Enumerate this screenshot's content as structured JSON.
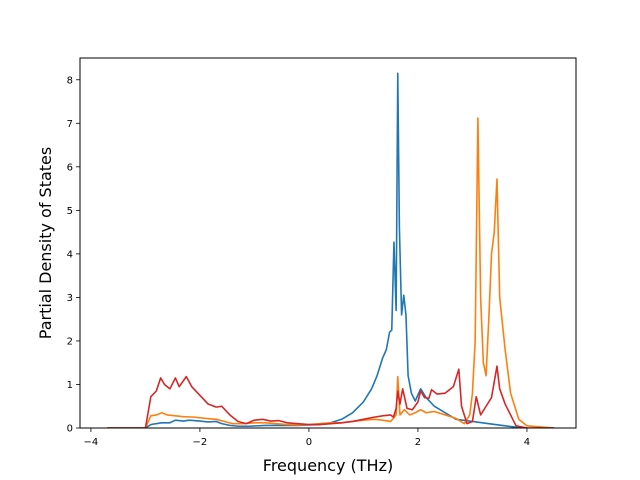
{
  "chart_data": {
    "type": "line",
    "title": "",
    "xlabel": "Frequency (THz)",
    "ylabel": "Partial Density of States",
    "xlim": [
      -4.2,
      4.9
    ],
    "ylim": [
      0,
      8.5
    ],
    "xticks": [
      -4,
      -2,
      0,
      2,
      4
    ],
    "yticks": [
      0,
      1,
      2,
      3,
      4,
      5,
      6,
      7,
      8
    ],
    "grid": false,
    "legend": "none",
    "series": [
      {
        "color": "#1f77b4",
        "points": [
          [
            -3.7,
            0
          ],
          [
            -3.0,
            0
          ],
          [
            -2.9,
            0.08
          ],
          [
            -2.7,
            0.12
          ],
          [
            -2.55,
            0.12
          ],
          [
            -2.45,
            0.18
          ],
          [
            -2.3,
            0.16
          ],
          [
            -2.2,
            0.18
          ],
          [
            -2.0,
            0.16
          ],
          [
            -1.85,
            0.14
          ],
          [
            -1.7,
            0.15
          ],
          [
            -1.6,
            0.1
          ],
          [
            -1.45,
            0.06
          ],
          [
            -1.3,
            0.04
          ],
          [
            -1.1,
            0.04
          ],
          [
            -0.8,
            0.06
          ],
          [
            -0.5,
            0.06
          ],
          [
            -0.2,
            0.06
          ],
          [
            0.0,
            0.07
          ],
          [
            0.2,
            0.08
          ],
          [
            0.4,
            0.12
          ],
          [
            0.6,
            0.2
          ],
          [
            0.8,
            0.35
          ],
          [
            1.0,
            0.6
          ],
          [
            1.15,
            0.9
          ],
          [
            1.25,
            1.2
          ],
          [
            1.35,
            1.6
          ],
          [
            1.42,
            1.8
          ],
          [
            1.48,
            2.2
          ],
          [
            1.52,
            2.25
          ],
          [
            1.56,
            4.27
          ],
          [
            1.6,
            2.7
          ],
          [
            1.63,
            8.15
          ],
          [
            1.66,
            4.6
          ],
          [
            1.7,
            2.6
          ],
          [
            1.74,
            3.05
          ],
          [
            1.78,
            2.6
          ],
          [
            1.82,
            1.2
          ],
          [
            1.88,
            0.8
          ],
          [
            1.95,
            0.62
          ],
          [
            2.05,
            0.9
          ],
          [
            2.15,
            0.7
          ],
          [
            2.3,
            0.5
          ],
          [
            2.5,
            0.35
          ],
          [
            2.7,
            0.2
          ],
          [
            3.0,
            0.15
          ],
          [
            3.3,
            0.1
          ],
          [
            3.6,
            0.05
          ],
          [
            3.8,
            0.02
          ],
          [
            4.0,
            0
          ]
        ]
      },
      {
        "color": "#ff7f0e",
        "points": [
          [
            -3.7,
            0
          ],
          [
            -3.0,
            0
          ],
          [
            -2.9,
            0.28
          ],
          [
            -2.8,
            0.3
          ],
          [
            -2.7,
            0.35
          ],
          [
            -2.6,
            0.3
          ],
          [
            -2.45,
            0.28
          ],
          [
            -2.3,
            0.26
          ],
          [
            -2.1,
            0.25
          ],
          [
            -1.9,
            0.22
          ],
          [
            -1.7,
            0.2
          ],
          [
            -1.55,
            0.15
          ],
          [
            -1.4,
            0.1
          ],
          [
            -1.2,
            0.1
          ],
          [
            -1.0,
            0.12
          ],
          [
            -0.8,
            0.12
          ],
          [
            -0.6,
            0.1
          ],
          [
            -0.4,
            0.08
          ],
          [
            -0.2,
            0.07
          ],
          [
            0.0,
            0.08
          ],
          [
            0.2,
            0.1
          ],
          [
            0.4,
            0.12
          ],
          [
            0.6,
            0.12
          ],
          [
            0.8,
            0.15
          ],
          [
            1.0,
            0.18
          ],
          [
            1.2,
            0.2
          ],
          [
            1.35,
            0.18
          ],
          [
            1.5,
            0.15
          ],
          [
            1.6,
            0.3
          ],
          [
            1.63,
            1.18
          ],
          [
            1.67,
            0.3
          ],
          [
            1.75,
            0.42
          ],
          [
            1.85,
            0.3
          ],
          [
            1.95,
            0.35
          ],
          [
            2.05,
            0.42
          ],
          [
            2.15,
            0.35
          ],
          [
            2.3,
            0.38
          ],
          [
            2.5,
            0.3
          ],
          [
            2.7,
            0.22
          ],
          [
            2.85,
            0.1
          ],
          [
            2.95,
            0.3
          ],
          [
            3.0,
            0.8
          ],
          [
            3.05,
            2.0
          ],
          [
            3.1,
            7.12
          ],
          [
            3.15,
            3.0
          ],
          [
            3.2,
            1.5
          ],
          [
            3.25,
            1.2
          ],
          [
            3.3,
            2.5
          ],
          [
            3.35,
            4.0
          ],
          [
            3.4,
            4.5
          ],
          [
            3.45,
            5.72
          ],
          [
            3.5,
            3.0
          ],
          [
            3.6,
            1.8
          ],
          [
            3.7,
            0.8
          ],
          [
            3.85,
            0.2
          ],
          [
            4.0,
            0.05
          ],
          [
            4.5,
            0
          ]
        ]
      },
      {
        "color": "#d62728",
        "points": [
          [
            -3.7,
            0
          ],
          [
            -3.0,
            0
          ],
          [
            -2.9,
            0.72
          ],
          [
            -2.8,
            0.85
          ],
          [
            -2.72,
            1.15
          ],
          [
            -2.65,
            1.0
          ],
          [
            -2.55,
            0.9
          ],
          [
            -2.45,
            1.15
          ],
          [
            -2.38,
            0.95
          ],
          [
            -2.25,
            1.18
          ],
          [
            -2.15,
            0.95
          ],
          [
            -2.0,
            0.75
          ],
          [
            -1.85,
            0.55
          ],
          [
            -1.7,
            0.48
          ],
          [
            -1.6,
            0.5
          ],
          [
            -1.45,
            0.3
          ],
          [
            -1.3,
            0.15
          ],
          [
            -1.15,
            0.1
          ],
          [
            -1.0,
            0.18
          ],
          [
            -0.85,
            0.2
          ],
          [
            -0.7,
            0.16
          ],
          [
            -0.55,
            0.17
          ],
          [
            -0.4,
            0.12
          ],
          [
            -0.2,
            0.1
          ],
          [
            0.0,
            0.08
          ],
          [
            0.2,
            0.08
          ],
          [
            0.4,
            0.1
          ],
          [
            0.6,
            0.12
          ],
          [
            0.8,
            0.15
          ],
          [
            1.0,
            0.2
          ],
          [
            1.2,
            0.25
          ],
          [
            1.35,
            0.28
          ],
          [
            1.5,
            0.3
          ],
          [
            1.55,
            0.25
          ],
          [
            1.6,
            0.45
          ],
          [
            1.63,
            0.85
          ],
          [
            1.67,
            0.55
          ],
          [
            1.72,
            0.9
          ],
          [
            1.8,
            0.45
          ],
          [
            1.9,
            0.42
          ],
          [
            2.0,
            0.6
          ],
          [
            2.05,
            0.85
          ],
          [
            2.12,
            0.7
          ],
          [
            2.2,
            0.68
          ],
          [
            2.25,
            0.88
          ],
          [
            2.35,
            0.78
          ],
          [
            2.5,
            0.8
          ],
          [
            2.65,
            0.95
          ],
          [
            2.75,
            1.35
          ],
          [
            2.8,
            0.5
          ],
          [
            2.9,
            0.1
          ],
          [
            3.0,
            0.15
          ],
          [
            3.07,
            0.72
          ],
          [
            3.15,
            0.3
          ],
          [
            3.25,
            0.5
          ],
          [
            3.35,
            0.7
          ],
          [
            3.45,
            1.42
          ],
          [
            3.5,
            0.9
          ],
          [
            3.6,
            0.55
          ],
          [
            3.7,
            0.3
          ],
          [
            3.8,
            0.05
          ],
          [
            4.0,
            0
          ],
          [
            4.5,
            0
          ]
        ]
      }
    ]
  }
}
